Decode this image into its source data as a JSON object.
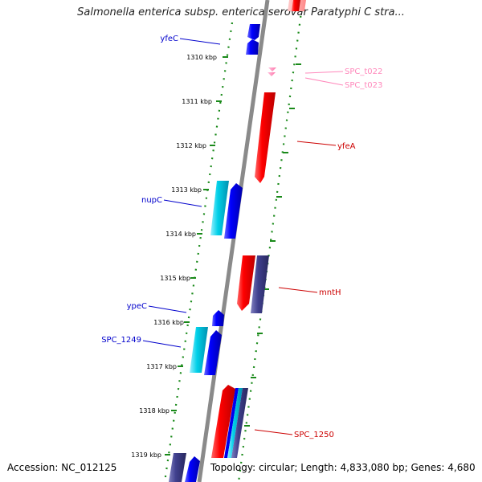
{
  "title": "Salmonella enterica subsp. enterica serovar Paratyphi C stra...",
  "ticks": [
    {
      "label": "1310 kbp",
      "position_kbp": 1310
    },
    {
      "label": "1311 kbp",
      "position_kbp": 1311
    },
    {
      "label": "1312 kbp",
      "position_kbp": 1312
    },
    {
      "label": "1313 kbp",
      "position_kbp": 1313
    },
    {
      "label": "1314 kbp",
      "position_kbp": 1314
    },
    {
      "label": "1315 kbp",
      "position_kbp": 1315
    },
    {
      "label": "1316 kbp",
      "position_kbp": 1316
    },
    {
      "label": "1317 kbp",
      "position_kbp": 1317
    },
    {
      "label": "1318 kbp",
      "position_kbp": 1318
    },
    {
      "label": "1319 kbp",
      "position_kbp": 1319
    }
  ],
  "gene_labels": [
    {
      "name": "yfeC",
      "color": "#0000cc"
    },
    {
      "name": "SPC_t022",
      "color": "#ff88bb"
    },
    {
      "name": "SPC_t023",
      "color": "#ff88bb"
    },
    {
      "name": "yfeA",
      "color": "#cc0000"
    },
    {
      "name": "nupC",
      "color": "#0000cc"
    },
    {
      "name": "mntH",
      "color": "#cc0000"
    },
    {
      "name": "ypeC",
      "color": "#0000cc"
    },
    {
      "name": "SPC_1249",
      "color": "#0000cc"
    },
    {
      "name": "SPC_1250",
      "color": "#cc0000"
    }
  ],
  "colors": {
    "backbone": "#888888",
    "tick": "#228822",
    "red_feature": "#ee0000",
    "blue_feature": "#0000ee",
    "cyan_feature": "#00ccdd",
    "navy_feature": "#333388",
    "pink_feature": "#ff88bb"
  },
  "footer": {
    "accession": "Accession: NC_012125",
    "summary": "Topology: circular; Length: 4,833,080 bp; Genes: 4,680"
  }
}
